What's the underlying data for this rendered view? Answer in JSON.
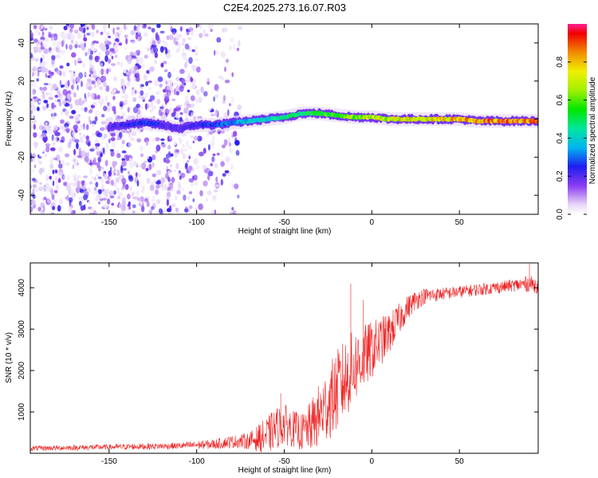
{
  "title": "C2E4.2025.273.16.07.R03",
  "chart_data": [
    {
      "type": "heatmap",
      "name": "spectrogram",
      "xlabel": "Height of straight line (km)",
      "ylabel": "Frequency (Hz)",
      "xlim": [
        -195,
        95
      ],
      "ylim": [
        -50,
        50
      ],
      "xticks": [
        -150,
        -100,
        -50,
        0,
        50
      ],
      "yticks": [
        -40,
        -20,
        0,
        20,
        40
      ],
      "noise_region_x": [
        -195,
        -75
      ],
      "signal_start_x": -150,
      "signal_track": {
        "x": [
          -150,
          -140,
          -130,
          -120,
          -110,
          -100,
          -90,
          -80,
          -70,
          -60,
          -50,
          -40,
          -30,
          -20,
          -10,
          0,
          10,
          20,
          30,
          40,
          50,
          60,
          70,
          80,
          90,
          95
        ],
        "freq": [
          -4,
          -3,
          -2,
          -3,
          -5,
          -3,
          -3,
          -2,
          -1,
          0,
          1,
          3,
          3,
          2,
          1,
          1,
          0,
          0,
          0,
          0,
          0,
          -1,
          -1,
          -1,
          -1,
          -1
        ],
        "amplitude": [
          0.2,
          0.25,
          0.3,
          0.25,
          0.2,
          0.25,
          0.3,
          0.35,
          0.4,
          0.45,
          0.5,
          0.55,
          0.6,
          0.65,
          0.7,
          0.75,
          0.78,
          0.8,
          0.82,
          0.85,
          0.88,
          0.9,
          0.95,
          0.98,
          0.95,
          0.9
        ]
      },
      "colorbar": {
        "label": "Normalized spectral amplitude",
        "range": [
          0,
          1
        ],
        "ticks": [
          "0.0",
          "0.2",
          "0.4",
          "0.6",
          "0.8"
        ],
        "tick_values": [
          0.0,
          0.2,
          0.4,
          0.6,
          0.8
        ]
      }
    },
    {
      "type": "line",
      "name": "snr",
      "xlabel": "Height of straight line (km)",
      "ylabel": "SNR (10 * v/v)",
      "xlim": [
        -195,
        95
      ],
      "ylim": [
        0,
        4600
      ],
      "xticks": [
        -150,
        -100,
        -50,
        0,
        50
      ],
      "yticks": [
        1000,
        2000,
        3000,
        4000
      ],
      "color": "#ee2222",
      "envelope": {
        "x": [
          -195,
          -150,
          -110,
          -90,
          -80,
          -70,
          -60,
          -55,
          -50,
          -45,
          -40,
          -35,
          -30,
          -25,
          -20,
          -15,
          -10,
          -5,
          0,
          5,
          10,
          15,
          20,
          25,
          30,
          40,
          50,
          60,
          70,
          80,
          90,
          95
        ],
        "mean": [
          120,
          150,
          180,
          220,
          280,
          300,
          420,
          600,
          700,
          600,
          500,
          650,
          900,
          1200,
          1500,
          1800,
          2100,
          2300,
          2500,
          2700,
          2900,
          3200,
          3500,
          3700,
          3800,
          3850,
          3900,
          3950,
          4000,
          4050,
          4100,
          4050
        ],
        "spread": [
          60,
          70,
          80,
          120,
          150,
          200,
          450,
          500,
          500,
          450,
          450,
          600,
          800,
          900,
          1000,
          1000,
          900,
          800,
          700,
          600,
          500,
          400,
          300,
          250,
          200,
          150,
          150,
          150,
          150,
          150,
          200,
          200
        ]
      },
      "spikes": [
        {
          "x": -52,
          "y": 1450
        },
        {
          "x": -12,
          "y": 4100
        },
        {
          "x": -5,
          "y": 3700
        },
        {
          "x": 90,
          "y": 4580
        }
      ]
    }
  ]
}
